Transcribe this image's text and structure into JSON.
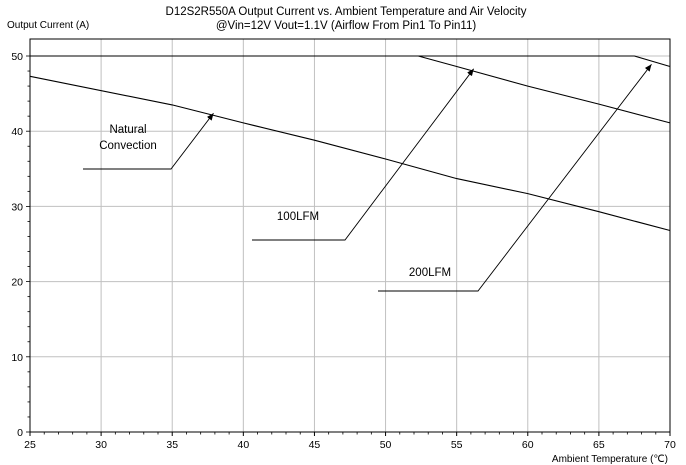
{
  "chart_data": {
    "type": "line",
    "title": "D12S2R550A  Output Current vs. Ambient Temperature and Air Velocity",
    "subtitle": "@Vin=12V Vout=1.1V (Airflow From Pin1 To Pin11)",
    "xlabel": "Ambient Temperature (℃)",
    "ylabel": "Output Current (A)",
    "xlim": [
      25,
      70
    ],
    "ylim": [
      0,
      50
    ],
    "x_ticks": [
      "25",
      "30",
      "35",
      "40",
      "45",
      "50",
      "55",
      "60",
      "65",
      "70"
    ],
    "y_ticks": [
      "0",
      "10",
      "20",
      "30",
      "40",
      "50"
    ],
    "grid": true,
    "legend": "none",
    "series": [
      {
        "name": "Natural Convection",
        "x": [
          25,
          35,
          40,
          45,
          50,
          55,
          60,
          65,
          70
        ],
        "y": [
          47.3,
          43.5,
          41.1,
          38.8,
          36.3,
          33.7,
          31.7,
          29.3,
          26.8
        ]
      },
      {
        "name": "100LFM",
        "x": [
          25,
          52.3,
          55,
          60,
          65,
          70
        ],
        "y": [
          50,
          50,
          48.6,
          46.0,
          43.6,
          41.1
        ]
      },
      {
        "name": "200LFM",
        "x": [
          25,
          67.5,
          70
        ],
        "y": [
          50,
          50,
          48.6
        ]
      }
    ],
    "annotations": [
      {
        "text": "Natural\nConvection",
        "lines": [
          "Natural",
          "Convection"
        ],
        "target": [
          37.9,
          42.4
        ]
      },
      {
        "text": "100LFM",
        "lines": [
          "100LFM"
        ],
        "target": [
          56.2,
          48.3
        ]
      },
      {
        "text": "200LFM",
        "lines": [
          "200LFM"
        ],
        "target": [
          68.7,
          48.9
        ]
      }
    ]
  }
}
